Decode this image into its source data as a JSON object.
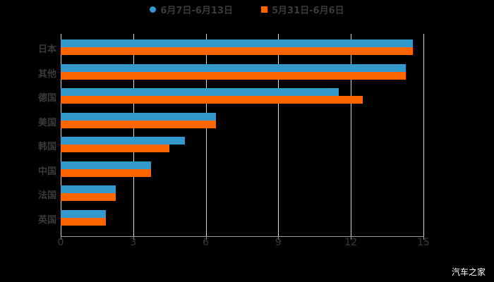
{
  "chart_data": {
    "type": "bar",
    "orientation": "horizontal",
    "title": "",
    "xlabel": "",
    "ylabel": "",
    "categories": [
      "日本",
      "其他",
      "德国",
      "美国",
      "韩国",
      "中国",
      "法国",
      "英国"
    ],
    "series": [
      {
        "name": "6月7日-6月13日",
        "color": "#3399cc",
        "values": [
          14.56,
          14.27,
          11.5,
          6.42,
          5.14,
          3.73,
          2.28,
          1.87
        ]
      },
      {
        "name": "5月31日-6月6日",
        "color": "#ff6600",
        "values": [
          14.56,
          14.27,
          12.49,
          6.42,
          4.49,
          3.73,
          2.28,
          1.87
        ]
      }
    ],
    "xlim": [
      0,
      15
    ],
    "xticks": [
      0,
      3,
      6,
      9,
      12,
      15
    ],
    "grid": true,
    "legend_position": "top"
  },
  "legend": {
    "series0": "6月7日-6月13日",
    "series1": "5月31日-6月6日"
  },
  "axis": {
    "ticks": [
      "0",
      "3",
      "6",
      "9",
      "12",
      "15"
    ]
  },
  "watermark": "汽车之家"
}
